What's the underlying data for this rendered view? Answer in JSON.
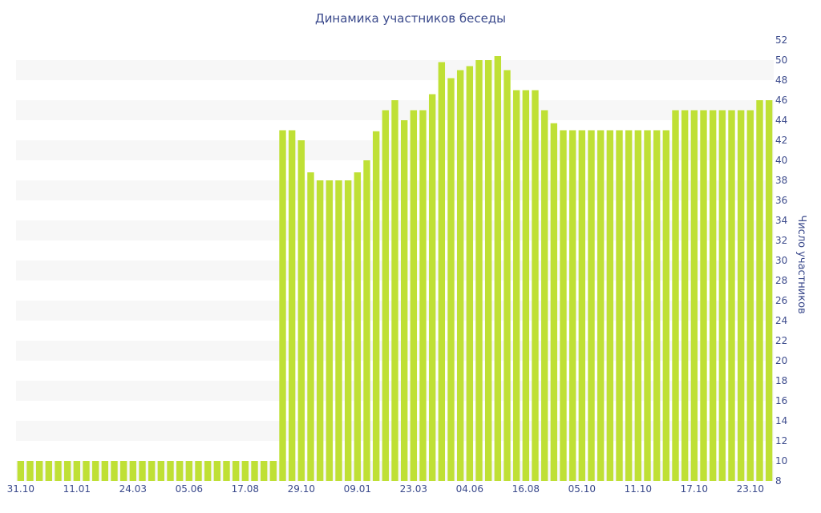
{
  "chart_data": {
    "type": "bar",
    "title": "Динамика участников беседы",
    "xlabel": "",
    "ylabel": "Число участников",
    "ylim": [
      8,
      52
    ],
    "y_ticks": [
      8,
      10,
      12,
      14,
      16,
      18,
      20,
      22,
      24,
      26,
      28,
      30,
      32,
      34,
      36,
      38,
      40,
      42,
      44,
      46,
      48,
      50,
      52
    ],
    "x_tick_labels": [
      {
        "label": "31.10",
        "index": 0
      },
      {
        "label": "11.01",
        "index": 6
      },
      {
        "label": "24.03",
        "index": 12
      },
      {
        "label": "05.06",
        "index": 18
      },
      {
        "label": "17.08",
        "index": 24
      },
      {
        "label": "29.10",
        "index": 30
      },
      {
        "label": "09.01",
        "index": 36
      },
      {
        "label": "23.03",
        "index": 42
      },
      {
        "label": "04.06",
        "index": 48
      },
      {
        "label": "16.08",
        "index": 54
      },
      {
        "label": "05.10",
        "index": 60
      },
      {
        "label": "11.10",
        "index": 66
      },
      {
        "label": "17.10",
        "index": 72
      },
      {
        "label": "23.10",
        "index": 78
      }
    ],
    "values": [
      10,
      10,
      10,
      10,
      10,
      10,
      10,
      10,
      10,
      10,
      10,
      10,
      10,
      10,
      10,
      10,
      10,
      10,
      10,
      10,
      10,
      10,
      10,
      10,
      10,
      10,
      10,
      10,
      43,
      43,
      42,
      38.8,
      38,
      38,
      38,
      38,
      38.8,
      40,
      42.9,
      45,
      46,
      44,
      45,
      45,
      46.6,
      49.8,
      48.2,
      49,
      49.4,
      50,
      50,
      50.4,
      49,
      47,
      47,
      47,
      45,
      43.7,
      43,
      43,
      43,
      43,
      43,
      43,
      43,
      43,
      43,
      43,
      43,
      43,
      45,
      45,
      45,
      45,
      45,
      45,
      45,
      45,
      45,
      46,
      46
    ],
    "colors": {
      "bar": "#bfe035",
      "text": "#3b4a8c",
      "band": "#f7f7f7"
    },
    "grid": "alternating horizontal bands",
    "legend": "none"
  }
}
